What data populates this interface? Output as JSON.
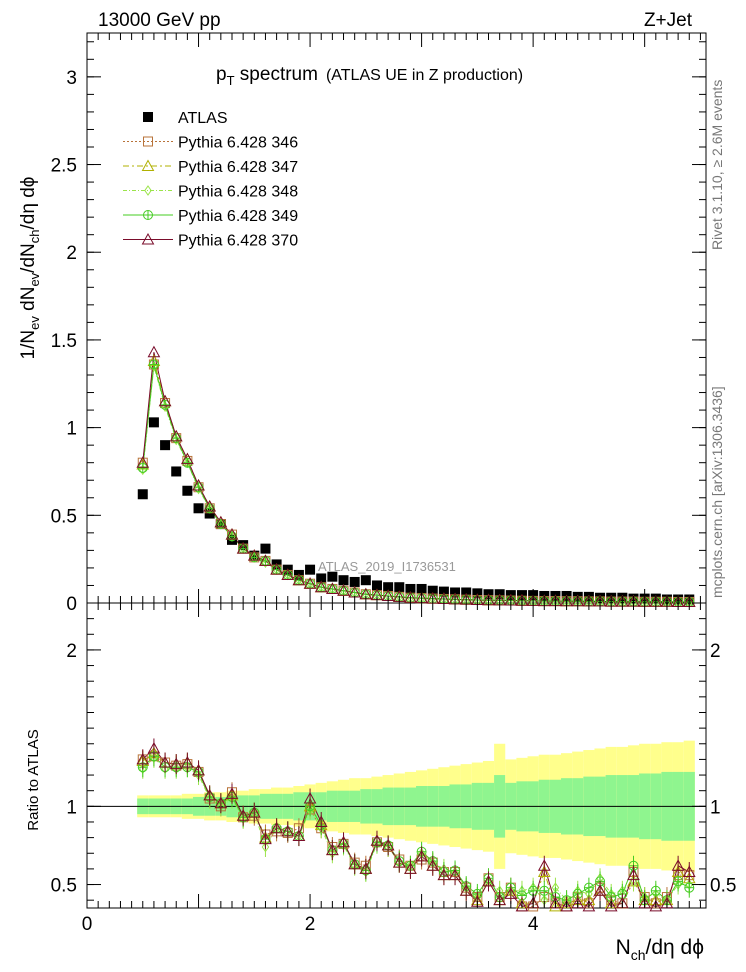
{
  "header": {
    "left": "13000 GeV pp",
    "right": "Z+Jet"
  },
  "title": {
    "main": "p",
    "main_sub": "T",
    "main_rest": " spectrum",
    "detail": "(ATLAS UE in Z production)"
  },
  "watermark": "ATLAS_2019_I1736531",
  "side_labels": {
    "top": "Rivet 3.1.10, ≥ 2.6M events",
    "bottom": "mcplots.cern.ch [arXiv:1306.3436]"
  },
  "colors": {
    "ATLAS": "#000000",
    "p346": "#b8733a",
    "p347": "#b0b000",
    "p348": "#9be44a",
    "p349": "#44cc22",
    "p370": "#7a0c2b",
    "band_inner": "#8ff58f",
    "band_outer": "#ffff8c"
  },
  "chart_data": [
    {
      "type": "scatter",
      "panel": "main",
      "ylabel": "1/N_ev dN_ev/dN_ch/dη dϕ",
      "xlim": [
        0,
        5.55
      ],
      "ylim": [
        0,
        3.25
      ],
      "yticks": [
        0,
        0.5,
        1,
        1.5,
        2,
        2.5,
        3
      ],
      "yticklabels": [
        "0",
        "0.5",
        "1",
        "1.5",
        "2",
        "2.5",
        "3"
      ],
      "x": [
        0.5,
        0.6,
        0.7,
        0.8,
        0.9,
        1.0,
        1.1,
        1.2,
        1.3,
        1.4,
        1.5,
        1.6,
        1.7,
        1.8,
        1.9,
        2.0,
        2.1,
        2.2,
        2.3,
        2.4,
        2.5,
        2.6,
        2.7,
        2.8,
        2.9,
        3.0,
        3.1,
        3.2,
        3.3,
        3.4,
        3.5,
        3.6,
        3.7,
        3.8,
        3.9,
        4.0,
        4.1,
        4.2,
        4.3,
        4.4,
        4.5,
        4.6,
        4.7,
        4.8,
        4.9,
        5.0,
        5.1,
        5.2,
        5.3,
        5.4
      ],
      "series": [
        {
          "name": "ATLAS",
          "marker": "filled-square",
          "values": [
            0.62,
            1.03,
            0.9,
            0.75,
            0.64,
            0.54,
            0.51,
            0.45,
            0.36,
            0.33,
            0.27,
            0.31,
            0.22,
            0.19,
            0.16,
            0.19,
            0.14,
            0.15,
            0.13,
            0.12,
            0.13,
            0.1,
            0.09,
            0.09,
            0.08,
            0.08,
            0.07,
            0.065,
            0.06,
            0.06,
            0.055,
            0.05,
            0.05,
            0.045,
            0.045,
            0.045,
            0.04,
            0.04,
            0.04,
            0.035,
            0.035,
            0.03,
            0.03,
            0.03,
            0.025,
            0.025,
            0.025,
            0.02,
            0.02,
            0.02
          ]
        },
        {
          "name": "Pythia 6.428 346",
          "marker": "open-square",
          "values": [
            0.8,
            1.36,
            1.14,
            0.94,
            0.81,
            0.66,
            0.54,
            0.45,
            0.39,
            0.31,
            0.26,
            0.24,
            0.19,
            0.16,
            0.13,
            0.11,
            0.09,
            0.08,
            0.07,
            0.06,
            0.05,
            0.045,
            0.04,
            0.035,
            0.03,
            0.028,
            0.025,
            0.023,
            0.021,
            0.019,
            0.017,
            0.016,
            0.015,
            0.014,
            0.013,
            0.012,
            0.011,
            0.011,
            0.01,
            0.01,
            0.009,
            0.009,
            0.008,
            0.008,
            0.008,
            0.007,
            0.007,
            0.007,
            0.006,
            0.006
          ]
        },
        {
          "name": "Pythia 6.428 347",
          "marker": "open-triangle",
          "values": [
            0.79,
            1.38,
            1.15,
            0.95,
            0.82,
            0.67,
            0.55,
            0.46,
            0.39,
            0.31,
            0.27,
            0.24,
            0.19,
            0.16,
            0.13,
            0.11,
            0.09,
            0.08,
            0.07,
            0.06,
            0.05,
            0.045,
            0.04,
            0.035,
            0.03,
            0.028,
            0.025,
            0.023,
            0.021,
            0.019,
            0.017,
            0.016,
            0.015,
            0.014,
            0.013,
            0.012,
            0.011,
            0.011,
            0.01,
            0.01,
            0.009,
            0.009,
            0.008,
            0.008,
            0.008,
            0.007,
            0.007,
            0.007,
            0.006,
            0.006
          ]
        },
        {
          "name": "Pythia 6.428 348",
          "marker": "open-diamond",
          "values": [
            0.76,
            1.35,
            1.12,
            0.93,
            0.8,
            0.65,
            0.54,
            0.45,
            0.38,
            0.31,
            0.26,
            0.23,
            0.19,
            0.16,
            0.13,
            0.11,
            0.09,
            0.08,
            0.07,
            0.06,
            0.05,
            0.045,
            0.04,
            0.035,
            0.03,
            0.027,
            0.025,
            0.022,
            0.02,
            0.018,
            0.017,
            0.016,
            0.015,
            0.014,
            0.013,
            0.012,
            0.011,
            0.01,
            0.01,
            0.009,
            0.009,
            0.008,
            0.008,
            0.008,
            0.007,
            0.007,
            0.007,
            0.006,
            0.006,
            0.006
          ]
        },
        {
          "name": "Pythia 6.428 349",
          "marker": "open-circle-cross",
          "values": [
            0.77,
            1.36,
            1.13,
            0.94,
            0.8,
            0.66,
            0.54,
            0.45,
            0.38,
            0.31,
            0.26,
            0.24,
            0.19,
            0.16,
            0.13,
            0.11,
            0.09,
            0.08,
            0.07,
            0.06,
            0.05,
            0.045,
            0.04,
            0.035,
            0.03,
            0.028,
            0.025,
            0.023,
            0.021,
            0.019,
            0.017,
            0.016,
            0.015,
            0.014,
            0.013,
            0.012,
            0.011,
            0.011,
            0.01,
            0.01,
            0.009,
            0.009,
            0.008,
            0.008,
            0.008,
            0.007,
            0.007,
            0.007,
            0.006,
            0.006
          ]
        },
        {
          "name": "Pythia 6.428 370",
          "marker": "open-triangle",
          "values": [
            0.8,
            1.43,
            1.15,
            0.95,
            0.82,
            0.67,
            0.55,
            0.46,
            0.39,
            0.31,
            0.27,
            0.24,
            0.19,
            0.16,
            0.13,
            0.11,
            0.09,
            0.08,
            0.07,
            0.06,
            0.05,
            0.045,
            0.04,
            0.035,
            0.03,
            0.028,
            0.025,
            0.023,
            0.021,
            0.019,
            0.017,
            0.016,
            0.015,
            0.014,
            0.013,
            0.012,
            0.011,
            0.011,
            0.01,
            0.01,
            0.009,
            0.009,
            0.008,
            0.008,
            0.008,
            0.007,
            0.007,
            0.007,
            0.006,
            0.006
          ]
        }
      ]
    },
    {
      "type": "line",
      "panel": "ratio",
      "ylabel": "Ratio to ATLAS",
      "xlabel": "N_ch/dη dϕ",
      "xlim": [
        0,
        5.55
      ],
      "ylim": [
        0.35,
        2.3
      ],
      "xticks": [
        0,
        2,
        4
      ],
      "xticklabels": [
        "0",
        "2",
        "4"
      ],
      "yticks": [
        0.5,
        1,
        2
      ],
      "yticklabels": [
        "0.5",
        "1",
        "2"
      ],
      "x": [
        0.5,
        0.6,
        0.7,
        0.8,
        0.9,
        1.0,
        1.1,
        1.2,
        1.3,
        1.4,
        1.5,
        1.6,
        1.7,
        1.8,
        1.9,
        2.0,
        2.1,
        2.2,
        2.3,
        2.4,
        2.5,
        2.6,
        2.7,
        2.8,
        2.9,
        3.0,
        3.1,
        3.2,
        3.3,
        3.4,
        3.5,
        3.6,
        3.7,
        3.8,
        3.9,
        4.0,
        4.1,
        4.2,
        4.3,
        4.4,
        4.5,
        4.6,
        4.7,
        4.8,
        4.9,
        5.0,
        5.1,
        5.2,
        5.3,
        5.4
      ],
      "band_inner_halfwidth": [
        0.05,
        0.05,
        0.05,
        0.05,
        0.05,
        0.06,
        0.06,
        0.06,
        0.07,
        0.07,
        0.07,
        0.08,
        0.08,
        0.08,
        0.09,
        0.09,
        0.09,
        0.1,
        0.1,
        0.1,
        0.11,
        0.11,
        0.12,
        0.12,
        0.12,
        0.13,
        0.13,
        0.13,
        0.14,
        0.14,
        0.15,
        0.15,
        0.2,
        0.15,
        0.16,
        0.16,
        0.17,
        0.17,
        0.18,
        0.18,
        0.19,
        0.19,
        0.2,
        0.2,
        0.2,
        0.21,
        0.21,
        0.22,
        0.22,
        0.22
      ],
      "band_outer_halfwidth": [
        0.07,
        0.07,
        0.07,
        0.07,
        0.08,
        0.08,
        0.09,
        0.09,
        0.1,
        0.1,
        0.11,
        0.11,
        0.12,
        0.12,
        0.13,
        0.14,
        0.15,
        0.16,
        0.17,
        0.18,
        0.18,
        0.19,
        0.2,
        0.21,
        0.22,
        0.23,
        0.24,
        0.25,
        0.26,
        0.27,
        0.28,
        0.29,
        0.4,
        0.3,
        0.31,
        0.32,
        0.33,
        0.33,
        0.34,
        0.35,
        0.36,
        0.37,
        0.38,
        0.38,
        0.39,
        0.4,
        0.4,
        0.41,
        0.41,
        0.42
      ],
      "series": [
        {
          "name": "Pythia 6.428 346",
          "values": [
            1.3,
            1.32,
            1.28,
            1.26,
            1.27,
            1.22,
            1.05,
            1.0,
            1.09,
            0.93,
            0.94,
            0.82,
            0.84,
            0.83,
            0.86,
            0.98,
            0.86,
            0.74,
            0.76,
            0.64,
            0.62,
            0.77,
            0.74,
            0.66,
            0.62,
            0.66,
            0.64,
            0.58,
            0.58,
            0.48,
            0.42,
            0.54,
            0.42,
            0.48,
            0.36,
            0.36,
            0.42,
            0.38,
            0.36,
            0.42,
            0.38,
            0.48,
            0.4,
            0.38,
            0.58,
            0.42,
            0.38,
            0.42,
            0.56,
            0.56
          ]
        },
        {
          "name": "Pythia 6.428 347",
          "values": [
            1.29,
            1.34,
            1.28,
            1.27,
            1.28,
            1.23,
            1.07,
            1.02,
            1.07,
            0.94,
            0.96,
            0.8,
            0.86,
            0.84,
            0.81,
            1.0,
            0.88,
            0.72,
            0.77,
            0.63,
            0.6,
            0.78,
            0.75,
            0.64,
            0.6,
            0.68,
            0.62,
            0.56,
            0.56,
            0.46,
            0.4,
            0.52,
            0.4,
            0.46,
            0.38,
            0.38,
            0.58,
            0.36,
            0.38,
            0.4,
            0.4,
            0.46,
            0.38,
            0.38,
            0.52,
            0.4,
            0.4,
            0.4,
            0.58,
            0.54
          ]
        },
        {
          "name": "Pythia 6.428 348",
          "values": [
            1.24,
            1.31,
            1.24,
            1.24,
            1.25,
            1.2,
            1.05,
            1.0,
            1.05,
            0.92,
            0.96,
            0.74,
            0.86,
            0.84,
            0.81,
            0.98,
            0.86,
            0.7,
            0.75,
            0.62,
            0.58,
            0.76,
            0.74,
            0.64,
            0.62,
            0.7,
            0.64,
            0.6,
            0.58,
            0.48,
            0.42,
            0.52,
            0.46,
            0.46,
            0.46,
            0.48,
            0.4,
            0.48,
            0.4,
            0.46,
            0.44,
            0.54,
            0.44,
            0.46,
            0.52,
            0.42,
            0.44,
            0.4,
            0.5,
            0.5
          ]
        },
        {
          "name": "Pythia 6.428 349",
          "values": [
            1.25,
            1.32,
            1.25,
            1.25,
            1.25,
            1.22,
            1.06,
            1.02,
            1.06,
            0.93,
            0.96,
            0.79,
            0.86,
            0.84,
            0.81,
            1.0,
            0.88,
            0.72,
            0.76,
            0.63,
            0.59,
            0.77,
            0.75,
            0.65,
            0.62,
            0.71,
            0.65,
            0.58,
            0.59,
            0.49,
            0.44,
            0.54,
            0.42,
            0.48,
            0.43,
            0.46,
            0.46,
            0.42,
            0.4,
            0.44,
            0.48,
            0.52,
            0.42,
            0.44,
            0.62,
            0.4,
            0.46,
            0.4,
            0.52,
            0.48
          ]
        },
        {
          "name": "Pythia 6.428 370",
          "values": [
            1.3,
            1.37,
            1.28,
            1.27,
            1.28,
            1.23,
            1.07,
            1.02,
            1.08,
            0.94,
            0.96,
            0.79,
            0.86,
            0.84,
            0.81,
            1.05,
            0.9,
            0.72,
            0.77,
            0.63,
            0.6,
            0.78,
            0.75,
            0.64,
            0.6,
            0.68,
            0.62,
            0.56,
            0.56,
            0.46,
            0.39,
            0.52,
            0.4,
            0.44,
            0.36,
            0.38,
            0.62,
            0.38,
            0.36,
            0.38,
            0.36,
            0.46,
            0.36,
            0.38,
            0.56,
            0.38,
            0.36,
            0.38,
            0.62,
            0.58
          ]
        }
      ]
    }
  ]
}
